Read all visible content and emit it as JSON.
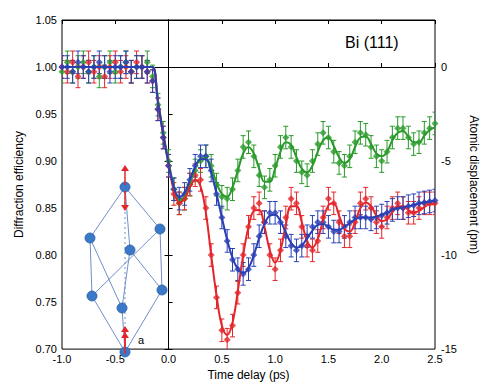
{
  "chart_data": {
    "type": "scatter",
    "xlabel": "Time delay (ps)",
    "ylabel": "Diffraction efficiency",
    "y2label": "Atomic displacement (pm)",
    "annotations": [
      "Bi (111)",
      "a"
    ],
    "xlim": [
      -1.0,
      2.5
    ],
    "xticks": [
      {
        "value": -1.0,
        "label": "-1.0"
      },
      -0.5,
      {
        "value": 0.0,
        "label": "0.0"
      },
      0.5,
      {
        "value": 1.0,
        "label": "1.0"
      },
      1.5,
      {
        "value": 2.0,
        "label": "2.0"
      },
      2.5
    ],
    "ylim": [
      0.7,
      1.05
    ],
    "yticks": [
      {
        "value": 0.7,
        "label": "0.70"
      },
      0.75,
      {
        "value": 0.8,
        "label": "0.80"
      },
      0.85,
      {
        "value": 0.9,
        "label": "0.90"
      },
      0.95,
      {
        "value": 1.0,
        "label": "1.00"
      },
      1.05
    ],
    "y2lim": [
      -15,
      2.5
    ],
    "y2ticks": [
      -15,
      -10,
      -5,
      0
    ],
    "grid": false,
    "x": [
      -1.0,
      -0.95,
      -0.9,
      -0.85,
      -0.8,
      -0.75,
      -0.7,
      -0.65,
      -0.6,
      -0.55,
      -0.5,
      -0.45,
      -0.4,
      -0.35,
      -0.3,
      -0.25,
      -0.2,
      -0.15,
      -0.1,
      -0.05,
      0.0,
      0.05,
      0.1,
      0.15,
      0.2,
      0.25,
      0.3,
      0.35,
      0.4,
      0.45,
      0.5,
      0.55,
      0.6,
      0.65,
      0.7,
      0.75,
      0.8,
      0.85,
      0.9,
      0.95,
      1.0,
      1.05,
      1.1,
      1.15,
      1.2,
      1.25,
      1.3,
      1.35,
      1.4,
      1.45,
      1.5,
      1.55,
      1.6,
      1.65,
      1.7,
      1.75,
      1.8,
      1.85,
      1.9,
      1.95,
      2.0,
      2.05,
      2.1,
      2.15,
      2.2,
      2.25,
      2.3,
      2.35,
      2.4,
      2.45,
      2.5
    ],
    "series": [
      {
        "color": "#2a9a2a",
        "marker": "diamond",
        "error": 0.012,
        "values": [
          0.995,
          1.005,
          0.995,
          1.0,
          1.005,
          0.995,
          1.0,
          0.99,
          1.0,
          1.005,
          0.995,
          1.0,
          1.005,
          0.995,
          1.0,
          1.0,
          1.005,
          0.99,
          0.96,
          0.93,
          0.9,
          0.87,
          0.855,
          0.86,
          0.875,
          0.89,
          0.9,
          0.905,
          0.895,
          0.875,
          0.862,
          0.86,
          0.87,
          0.89,
          0.915,
          0.92,
          0.905,
          0.885,
          0.872,
          0.88,
          0.895,
          0.915,
          0.925,
          0.915,
          0.9,
          0.888,
          0.885,
          0.9,
          0.918,
          0.93,
          0.925,
          0.91,
          0.898,
          0.895,
          0.905,
          0.92,
          0.93,
          0.928,
          0.915,
          0.905,
          0.9,
          0.91,
          0.925,
          0.935,
          0.935,
          0.925,
          0.918,
          0.92,
          0.93,
          0.935,
          0.94
        ],
        "fit": [
          1.0,
          1.0,
          1.0,
          1.0,
          1.0,
          1.0,
          1.0,
          1.0,
          1.0,
          1.0,
          1.0,
          1.0,
          1.0,
          1.0,
          1.0,
          1.0,
          1.0,
          1.0,
          0.965,
          0.93,
          0.9,
          0.872,
          0.858,
          0.862,
          0.876,
          0.892,
          0.902,
          0.903,
          0.893,
          0.877,
          0.865,
          0.862,
          0.872,
          0.89,
          0.908,
          0.915,
          0.908,
          0.892,
          0.878,
          0.878,
          0.892,
          0.91,
          0.92,
          0.917,
          0.904,
          0.892,
          0.888,
          0.895,
          0.91,
          0.922,
          0.925,
          0.916,
          0.904,
          0.898,
          0.902,
          0.915,
          0.925,
          0.926,
          0.918,
          0.908,
          0.905,
          0.91,
          0.922,
          0.93,
          0.932,
          0.926,
          0.92,
          0.92,
          0.927,
          0.933,
          0.936
        ]
      },
      {
        "color": "#e3262b",
        "marker": "diamond",
        "error": 0.012,
        "values": [
          1.0,
          0.995,
          1.005,
          0.99,
          1.0,
          1.005,
          0.995,
          1.0,
          0.99,
          1.0,
          1.005,
          0.995,
          1.0,
          0.995,
          1.005,
          1.0,
          0.995,
          0.985,
          0.955,
          0.925,
          0.895,
          0.865,
          0.855,
          0.86,
          0.875,
          0.885,
          0.88,
          0.85,
          0.8,
          0.755,
          0.72,
          0.71,
          0.725,
          0.76,
          0.8,
          0.83,
          0.85,
          0.855,
          0.835,
          0.8,
          0.785,
          0.805,
          0.84,
          0.86,
          0.855,
          0.83,
          0.81,
          0.805,
          0.815,
          0.84,
          0.86,
          0.855,
          0.835,
          0.82,
          0.82,
          0.835,
          0.855,
          0.86,
          0.85,
          0.835,
          0.83,
          0.84,
          0.85,
          0.855,
          0.85,
          0.845,
          0.845,
          0.85,
          0.855,
          0.855,
          0.855
        ],
        "fit": [
          1.0,
          1.0,
          1.0,
          1.0,
          1.0,
          1.0,
          1.0,
          1.0,
          1.0,
          1.0,
          1.0,
          1.0,
          1.0,
          1.0,
          1.0,
          1.0,
          1.0,
          1.0,
          0.963,
          0.928,
          0.897,
          0.868,
          0.856,
          0.86,
          0.872,
          0.88,
          0.873,
          0.845,
          0.8,
          0.757,
          0.725,
          0.715,
          0.728,
          0.762,
          0.8,
          0.83,
          0.847,
          0.848,
          0.83,
          0.805,
          0.792,
          0.805,
          0.832,
          0.852,
          0.852,
          0.835,
          0.815,
          0.808,
          0.817,
          0.837,
          0.853,
          0.855,
          0.842,
          0.828,
          0.825,
          0.835,
          0.85,
          0.856,
          0.852,
          0.842,
          0.836,
          0.838,
          0.846,
          0.852,
          0.852,
          0.848,
          0.845,
          0.847,
          0.851,
          0.854,
          0.854
        ]
      },
      {
        "color": "#2b3fb5",
        "marker": "diamond",
        "error": 0.012,
        "values": [
          1.0,
          1.0,
          0.995,
          1.005,
          1.0,
          0.995,
          1.0,
          1.005,
          1.0,
          0.995,
          1.0,
          1.0,
          1.005,
          0.995,
          1.0,
          1.0,
          0.995,
          0.985,
          0.955,
          0.925,
          0.895,
          0.87,
          0.86,
          0.865,
          0.88,
          0.895,
          0.905,
          0.905,
          0.89,
          0.865,
          0.84,
          0.815,
          0.795,
          0.785,
          0.78,
          0.785,
          0.8,
          0.82,
          0.835,
          0.845,
          0.845,
          0.835,
          0.82,
          0.81,
          0.805,
          0.81,
          0.82,
          0.83,
          0.835,
          0.835,
          0.83,
          0.825,
          0.825,
          0.83,
          0.835,
          0.84,
          0.84,
          0.84,
          0.838,
          0.84,
          0.842,
          0.845,
          0.848,
          0.85,
          0.85,
          0.852,
          0.853,
          0.855,
          0.856,
          0.857,
          0.858
        ],
        "fit": [
          1.0,
          1.0,
          1.0,
          1.0,
          1.0,
          1.0,
          1.0,
          1.0,
          1.0,
          1.0,
          1.0,
          1.0,
          1.0,
          1.0,
          1.0,
          1.0,
          1.0,
          1.0,
          0.963,
          0.928,
          0.897,
          0.872,
          0.862,
          0.866,
          0.88,
          0.894,
          0.902,
          0.902,
          0.888,
          0.865,
          0.84,
          0.816,
          0.797,
          0.785,
          0.781,
          0.786,
          0.8,
          0.818,
          0.833,
          0.842,
          0.843,
          0.836,
          0.824,
          0.813,
          0.808,
          0.81,
          0.818,
          0.826,
          0.832,
          0.833,
          0.83,
          0.827,
          0.827,
          0.83,
          0.834,
          0.838,
          0.84,
          0.84,
          0.84,
          0.841,
          0.843,
          0.845,
          0.848,
          0.85,
          0.851,
          0.852,
          0.853,
          0.855,
          0.856,
          0.857,
          0.858
        ]
      }
    ]
  }
}
